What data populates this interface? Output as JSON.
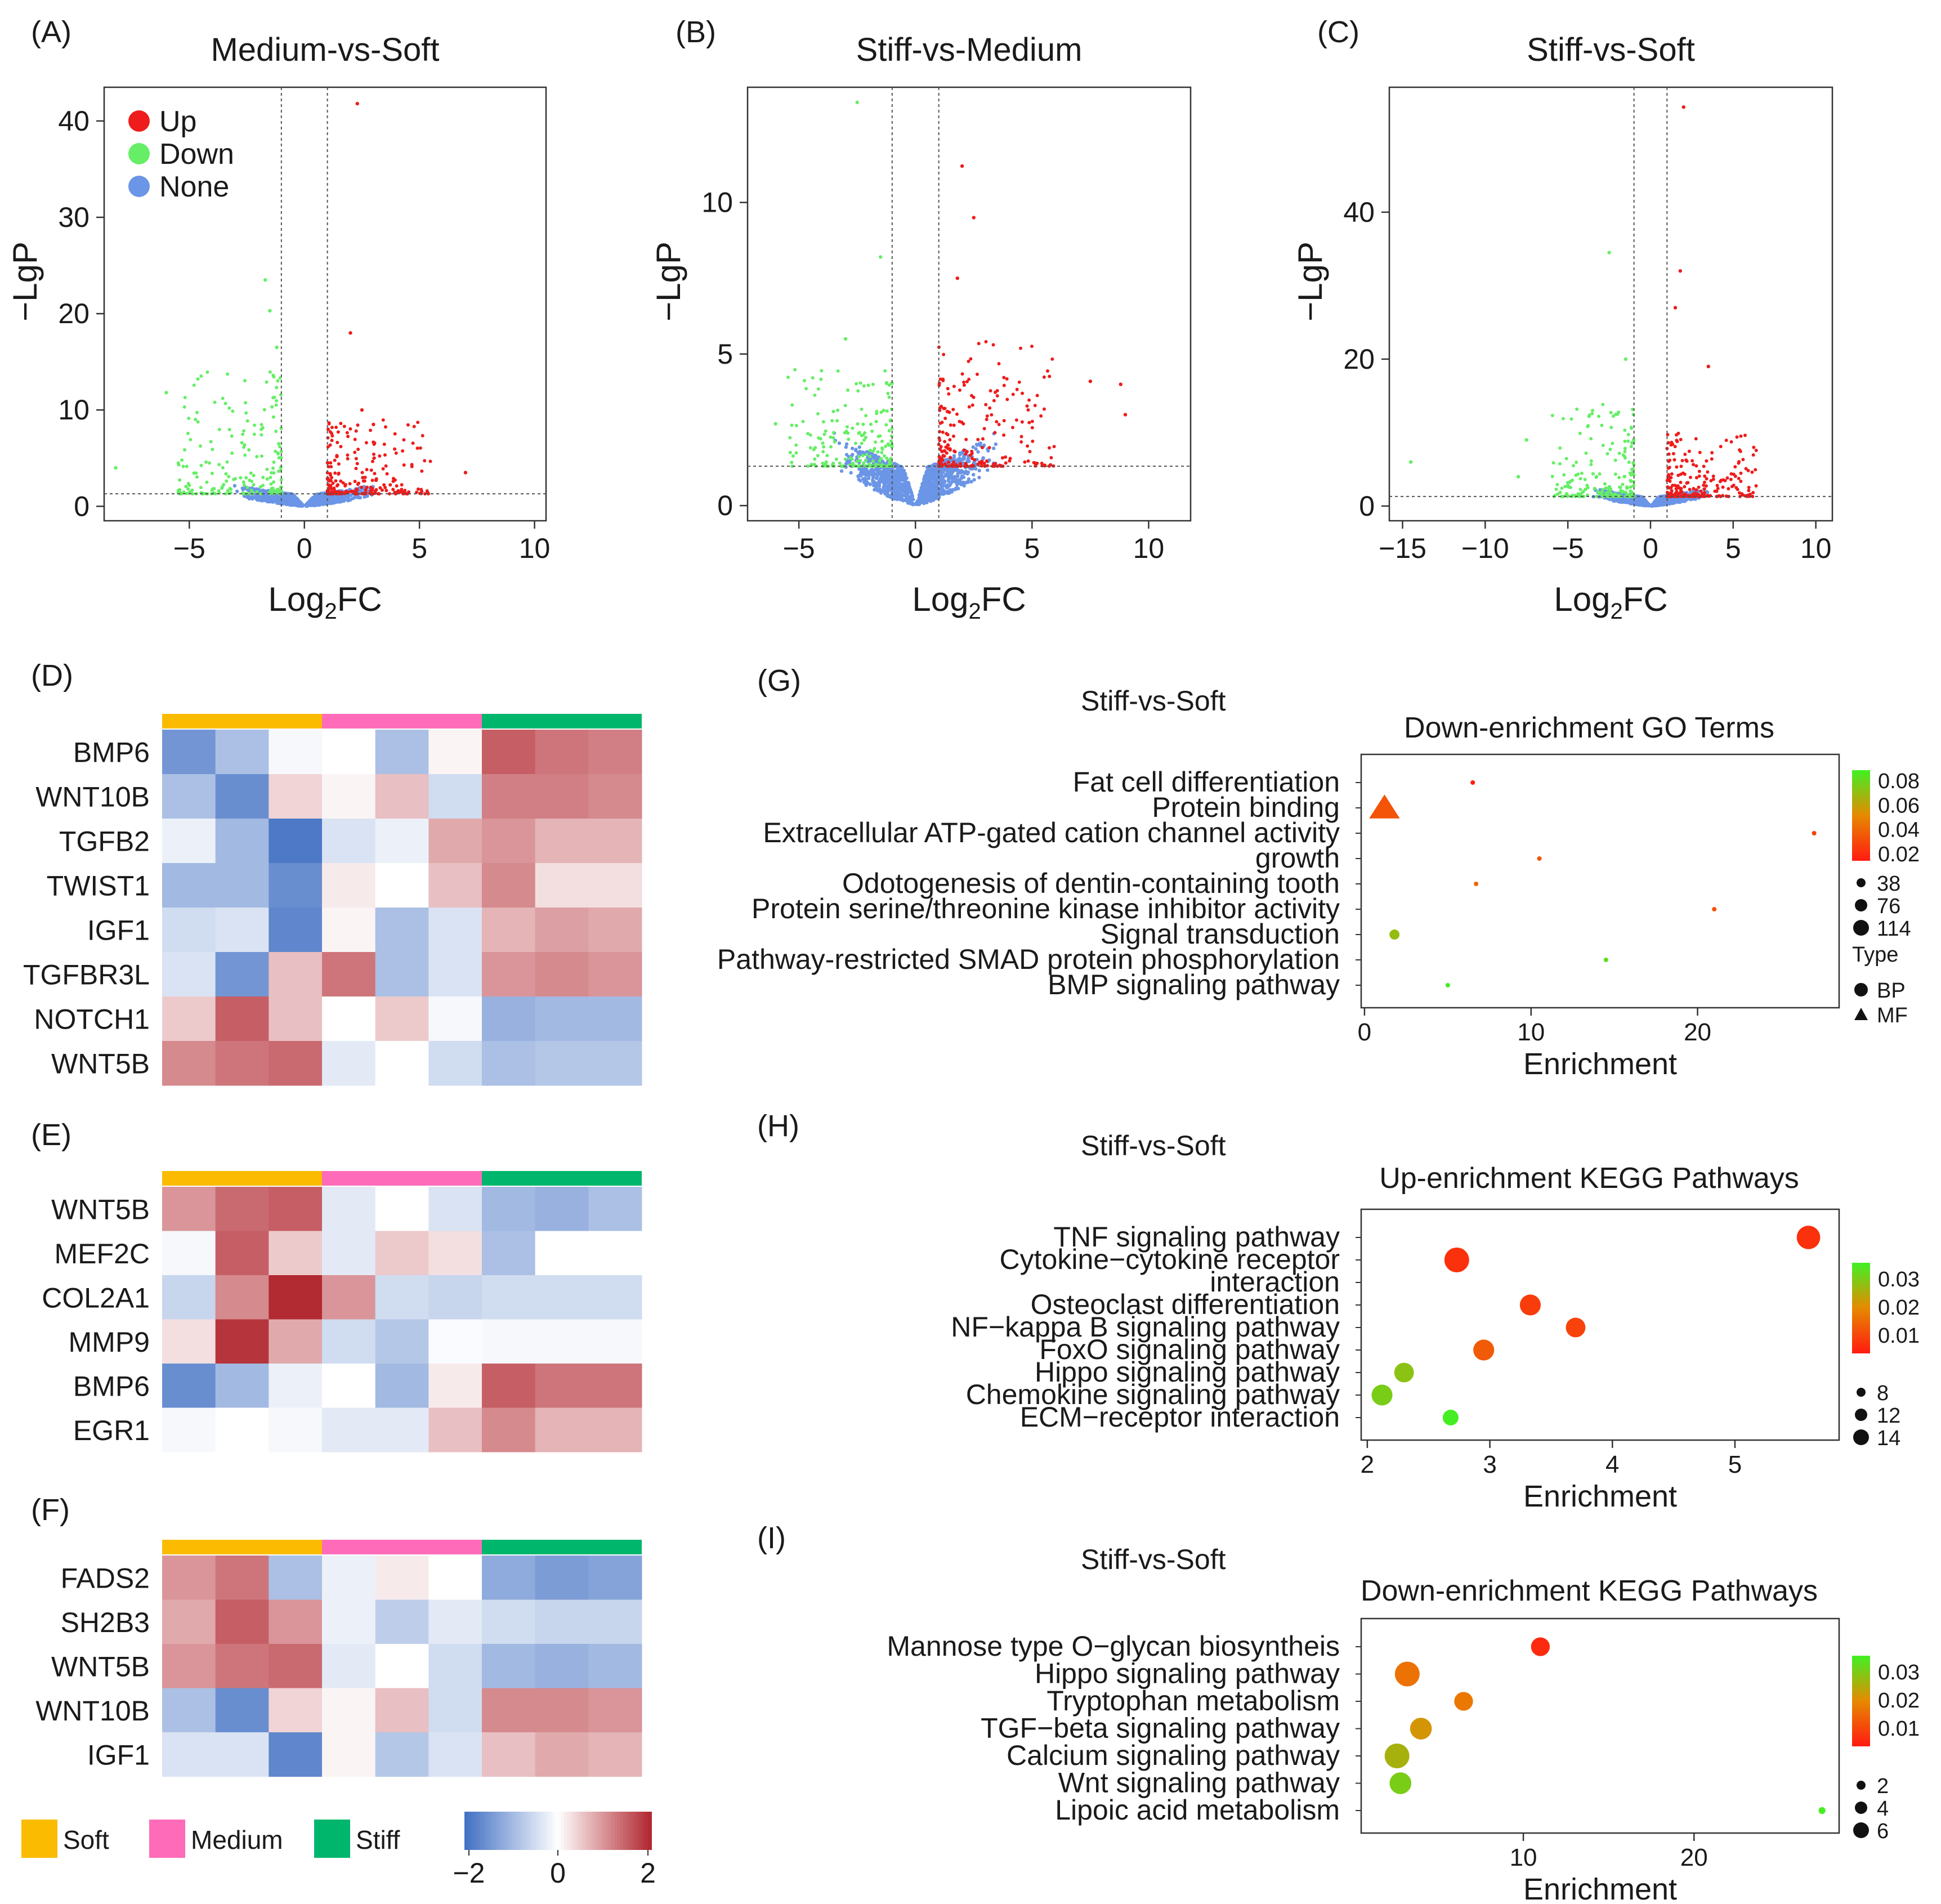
{
  "chart_data": [
    {
      "id": "A",
      "type": "scatter",
      "panel_label": "(A)",
      "title": "Medium-vs-Soft",
      "xlabel": "Log2FC",
      "ylabel": "−LgP",
      "xlim": [
        -8.7,
        10.5
      ],
      "ylim": [
        -1.5,
        43.5
      ],
      "xticks": [
        {
          "v": -5,
          "t": "−5"
        },
        {
          "v": 0,
          "t": "0"
        },
        {
          "v": 5,
          "t": "5"
        },
        {
          "v": 10,
          "t": "10"
        }
      ],
      "yticks": [
        {
          "v": 0,
          "t": "0"
        },
        {
          "v": 10,
          "t": "10"
        },
        {
          "v": 20,
          "t": "20"
        },
        {
          "v": 30,
          "t": "30"
        },
        {
          "v": 40,
          "t": "40"
        }
      ],
      "fc_cut": 1,
      "p_cut": 1.3,
      "legend": [
        {
          "label": "Up",
          "color": "#ee1c1c"
        },
        {
          "label": "Down",
          "color": "#66ee66"
        },
        {
          "label": "None",
          "color": "#6b95e6"
        }
      ],
      "points": [
        [
          2.3,
          41.8,
          "up"
        ],
        [
          -1.7,
          23.5,
          "down"
        ],
        [
          -1.5,
          20.3,
          "down"
        ],
        [
          2.0,
          18.0,
          "up"
        ],
        [
          -1.2,
          16.5,
          "down"
        ],
        [
          -6,
          11.8,
          "down"
        ],
        [
          -8.2,
          4,
          "down"
        ],
        [
          7.0,
          3.5,
          "up"
        ],
        [
          3.0,
          8.5,
          "up"
        ],
        [
          2.5,
          10,
          "up"
        ]
      ],
      "none_spread": [
        -4.5,
        5.0
      ],
      "up_range": [
        1.0,
        5.5,
        1.3,
        9
      ],
      "down_range": [
        -5.5,
        -1.0,
        1.3,
        14
      ]
    },
    {
      "id": "B",
      "type": "scatter",
      "panel_label": "(B)",
      "title": "Stiff-vs-Medium",
      "xlabel": "Log2FC",
      "ylabel": "−LgP",
      "xlim": [
        -7.2,
        11.8
      ],
      "ylim": [
        -0.5,
        13.8
      ],
      "xticks": [
        {
          "v": -5,
          "t": "−5"
        },
        {
          "v": 0,
          "t": "0"
        },
        {
          "v": 5,
          "t": "5"
        },
        {
          "v": 10,
          "t": "10"
        }
      ],
      "yticks": [
        {
          "v": 0,
          "t": "0"
        },
        {
          "v": 5,
          "t": "5"
        },
        {
          "v": 10,
          "t": "10"
        }
      ],
      "fc_cut": 1,
      "p_cut": 1.3,
      "points": [
        [
          -2.5,
          13.3,
          "down"
        ],
        [
          -1.5,
          8.2,
          "down"
        ],
        [
          2.0,
          11.2,
          "up"
        ],
        [
          2.5,
          9.5,
          "up"
        ],
        [
          1.8,
          7.5,
          "up"
        ],
        [
          7.5,
          4.1,
          "up"
        ],
        [
          8.8,
          4.0,
          "up"
        ],
        [
          9.0,
          3.0,
          "up"
        ],
        [
          -6.0,
          2.7,
          "down"
        ],
        [
          -3,
          5.5,
          "down"
        ]
      ],
      "none_spread": [
        -6.0,
        5.5
      ],
      "up_range": [
        1.0,
        6.0,
        1.3,
        5.5
      ],
      "down_range": [
        -5.5,
        -1.0,
        1.3,
        4.5
      ]
    },
    {
      "id": "C",
      "type": "scatter",
      "panel_label": "(C)",
      "title": "Stiff-vs-Soft",
      "xlabel": "Log2FC",
      "ylabel": "−LgP",
      "xlim": [
        -15.8,
        11.0
      ],
      "ylim": [
        -2.0,
        57.0
      ],
      "xticks": [
        {
          "v": -15,
          "t": "−15"
        },
        {
          "v": -10,
          "t": "−10"
        },
        {
          "v": -5,
          "t": "−5"
        },
        {
          "v": 0,
          "t": "0"
        },
        {
          "v": 5,
          "t": "5"
        },
        {
          "v": 10,
          "t": "10"
        }
      ],
      "yticks": [
        {
          "v": 0,
          "t": "0"
        },
        {
          "v": 20,
          "t": "20"
        },
        {
          "v": 40,
          "t": "40"
        }
      ],
      "fc_cut": 1,
      "p_cut": 1.3,
      "points": [
        [
          2.0,
          54.3,
          "up"
        ],
        [
          -2.5,
          34.5,
          "down"
        ],
        [
          1.8,
          32.0,
          "up"
        ],
        [
          1.5,
          27.0,
          "up"
        ],
        [
          -1.5,
          20.0,
          "down"
        ],
        [
          -14.5,
          6.0,
          "down"
        ],
        [
          -7.5,
          9.0,
          "down"
        ],
        [
          -8.0,
          4.0,
          "down"
        ],
        [
          3.5,
          19,
          "up"
        ]
      ],
      "none_spread": [
        -6.0,
        5.5
      ],
      "up_range": [
        1.0,
        6.5,
        1.3,
        10
      ],
      "down_range": [
        -6.0,
        -1.0,
        1.3,
        14
      ]
    },
    {
      "id": "D",
      "type": "heatmap",
      "panel_label": "(D)",
      "rows": [
        "BMP6",
        "WNT10B",
        "TGFB2",
        "TWIST1",
        "IGF1",
        "TGFBR3L",
        "NOTCH1",
        "WNT5B"
      ],
      "groups": [
        "Soft",
        "Medium",
        "Stiff"
      ],
      "zlim": [
        -2,
        2
      ],
      "values": [
        [
          -1.5,
          -0.9,
          -0.1,
          0.0,
          -0.9,
          0.1,
          1.5,
          1.3,
          1.2
        ],
        [
          -0.9,
          -1.6,
          0.4,
          0.1,
          0.6,
          -0.5,
          1.2,
          1.2,
          1.1
        ],
        [
          -0.2,
          -1.0,
          -1.9,
          -0.4,
          -0.2,
          0.8,
          1.0,
          0.7,
          0.7
        ],
        [
          -1.0,
          -1.0,
          -1.6,
          0.2,
          0.0,
          0.6,
          1.1,
          0.3,
          0.3
        ],
        [
          -0.5,
          -0.4,
          -1.7,
          0.1,
          -0.9,
          -0.4,
          0.7,
          0.9,
          0.8
        ],
        [
          -0.4,
          -1.5,
          0.6,
          1.3,
          -0.9,
          -0.4,
          1.0,
          1.1,
          1.0
        ],
        [
          0.5,
          1.5,
          0.6,
          0.0,
          0.5,
          -0.1,
          -1.1,
          -1.0,
          -1.0
        ],
        [
          1.1,
          1.3,
          1.4,
          -0.3,
          0.0,
          -0.5,
          -0.9,
          -0.8,
          -0.8
        ]
      ]
    },
    {
      "id": "E",
      "type": "heatmap",
      "panel_label": "(E)",
      "rows": [
        "WNT5B",
        "MEF2C",
        "COL2A1",
        "MMP9",
        "BMP6",
        "EGR1"
      ],
      "groups": [
        "Soft",
        "Medium",
        "Stiff"
      ],
      "zlim": [
        -2,
        2
      ],
      "values": [
        [
          1.0,
          1.4,
          1.5,
          -0.3,
          0.0,
          -0.4,
          -1.0,
          -1.1,
          -0.9
        ],
        [
          -0.1,
          1.5,
          0.5,
          -0.3,
          0.5,
          0.3,
          -0.9,
          0.0,
          0.0
        ],
        [
          -0.6,
          1.1,
          2.0,
          1.0,
          -0.5,
          -0.6,
          -0.5,
          -0.5,
          -0.5
        ],
        [
          0.3,
          1.9,
          0.8,
          -0.5,
          -0.8,
          -0.05,
          -0.1,
          -0.1,
          -0.1
        ],
        [
          -1.6,
          -1.0,
          -0.2,
          0.0,
          -1.0,
          0.2,
          1.5,
          1.3,
          1.3
        ],
        [
          -0.1,
          0.0,
          -0.1,
          -0.3,
          -0.3,
          0.6,
          1.1,
          0.7,
          0.7
        ]
      ]
    },
    {
      "id": "F",
      "type": "heatmap",
      "panel_label": "(F)",
      "rows": [
        "FADS2",
        "SH2B3",
        "WNT5B",
        "WNT10B",
        "IGF1"
      ],
      "groups": [
        "Soft",
        "Medium",
        "Stiff"
      ],
      "zlim": [
        -2,
        2
      ],
      "values": [
        [
          1.0,
          1.3,
          -0.9,
          -0.2,
          0.2,
          0.0,
          -1.2,
          -1.4,
          -1.3
        ],
        [
          0.8,
          1.5,
          1.0,
          -0.2,
          -0.7,
          -0.3,
          -0.5,
          -0.6,
          -0.6
        ],
        [
          1.0,
          1.3,
          1.4,
          -0.3,
          0.0,
          -0.5,
          -1.0,
          -1.1,
          -1.0
        ],
        [
          -0.9,
          -1.6,
          0.4,
          0.1,
          0.6,
          -0.5,
          1.1,
          1.1,
          1.0
        ],
        [
          -0.4,
          -0.4,
          -1.7,
          0.1,
          -0.8,
          -0.4,
          0.6,
          0.8,
          0.7
        ]
      ]
    },
    {
      "id": "G",
      "type": "scatter",
      "panel_label": "(G)",
      "comparison": "Stiff-vs-Soft",
      "title": "Down-enrichment GO Terms",
      "xlabel": "Enrichment",
      "xlim": [
        -0.2,
        28.5
      ],
      "xticks": [
        {
          "v": 0,
          "t": "0"
        },
        {
          "v": 10,
          "t": "10"
        },
        {
          "v": 20,
          "t": "20"
        }
      ],
      "categories": [
        "Fat cell differentiation",
        "Protein binding",
        "Extracellular ATP-gated cation channel activity",
        "growth",
        "Odotogenesis of dentin-containing tooth",
        "Protein serine/threonine kinase inhibitor activity",
        "Signal transduction",
        "Pathway-restricted SMAD protein phosphorylation",
        "BMP signaling pathway"
      ],
      "points": [
        {
          "term": "Fat cell differentiation",
          "x": 6.5,
          "p": 0.02,
          "size": 1,
          "type": "BP"
        },
        {
          "term": "Protein binding",
          "x": 1.2,
          "p": 0.035,
          "size": 114,
          "type": "MF"
        },
        {
          "term": "Extracellular ATP-gated cation channel activity",
          "x": 27.0,
          "p": 0.03,
          "size": 1,
          "type": "MF"
        },
        {
          "term": "growth",
          "x": 10.5,
          "p": 0.035,
          "size": 1,
          "type": "BP"
        },
        {
          "term": "Odotogenesis of dentin-containing tooth",
          "x": 6.7,
          "p": 0.04,
          "size": 1,
          "type": "BP"
        },
        {
          "term": "Protein serine/threonine kinase inhibitor activity",
          "x": 21.0,
          "p": 0.035,
          "size": 1,
          "type": "MF"
        },
        {
          "term": "Signal transduction",
          "x": 1.8,
          "p": 0.065,
          "size": 5,
          "type": "BP"
        },
        {
          "term": "Pathway-restricted SMAD protein phosphorylation",
          "x": 14.5,
          "p": 0.075,
          "size": 1,
          "type": "BP"
        },
        {
          "term": "BMP signaling pathway",
          "x": 5.0,
          "p": 0.08,
          "size": 2,
          "type": "BP"
        }
      ],
      "color_scale": {
        "min": 0.02,
        "max": 0.08,
        "ticks": [
          "0.08",
          "0.06",
          "0.04",
          "0.02"
        ]
      },
      "size_legend": [
        "38",
        "76",
        "114"
      ],
      "type_legend": {
        "title": "Type",
        "items": [
          "BP",
          "MF"
        ]
      }
    },
    {
      "id": "H",
      "type": "scatter",
      "panel_label": "(H)",
      "comparison": "Stiff-vs-Soft",
      "title": "Up-enrichment KEGG Pathways",
      "xlabel": "Enrichment",
      "xlim": [
        1.95,
        5.85
      ],
      "xticks": [
        {
          "v": 2,
          "t": "2"
        },
        {
          "v": 3,
          "t": "3"
        },
        {
          "v": 4,
          "t": "4"
        },
        {
          "v": 5,
          "t": "5"
        }
      ],
      "categories": [
        "TNF signaling pathway",
        "Cytokine−cytokine receptor interaction",
        "Osteoclast differentiation",
        "NF−kappa B signaling pathway",
        "FoxO signaling pathway",
        "Hippo signaling pathway",
        "Chemokine signaling pathway",
        "ECM−receptor interaction"
      ],
      "points": [
        {
          "term": "TNF signaling pathway",
          "x": 5.6,
          "p": 0.003,
          "size": 13
        },
        {
          "term": "Cytokine−cytokine receptor interaction",
          "x": 2.73,
          "p": 0.003,
          "size": 14
        },
        {
          "term": "Osteoclast differentiation",
          "x": 3.33,
          "p": 0.005,
          "size": 11
        },
        {
          "term": "NF−kappa B signaling pathway",
          "x": 3.7,
          "p": 0.006,
          "size": 10
        },
        {
          "term": "FoxO signaling pathway",
          "x": 2.95,
          "p": 0.01,
          "size": 11
        },
        {
          "term": "Hippo signaling pathway",
          "x": 2.3,
          "p": 0.028,
          "size": 10
        },
        {
          "term": "Chemokine signaling pathway",
          "x": 2.12,
          "p": 0.03,
          "size": 11
        },
        {
          "term": "ECM−receptor interaction",
          "x": 2.68,
          "p": 0.036,
          "size": 7
        }
      ],
      "color_scale": {
        "min": 0.0,
        "max": 0.036,
        "ticks": [
          "0.03",
          "0.02",
          "0.01"
        ]
      },
      "size_legend": [
        "8",
        "12",
        "14"
      ]
    },
    {
      "id": "I",
      "type": "scatter",
      "panel_label": "(I)",
      "comparison": "Stiff-vs-Soft",
      "title": "Down-enrichment KEGG Pathways",
      "xlabel": "Enrichment",
      "xlim": [
        0.5,
        28.5
      ],
      "xticks": [
        {
          "v": 10,
          "t": "10"
        },
        {
          "v": 20,
          "t": "20"
        }
      ],
      "categories": [
        "Mannose type O−glycan biosyntheis",
        "Hippo signaling pathway",
        "Tryptophan metabolism",
        "TGF−beta signaling pathway",
        "Calcium signaling pathway",
        "Wnt signaling pathway",
        "Lipoic acid metabolism"
      ],
      "points": [
        {
          "term": "Mannose type O−glycan biosyntheis",
          "x": 11.0,
          "p": 0.002,
          "size": 4
        },
        {
          "term": "Hippo signaling pathway",
          "x": 3.2,
          "p": 0.014,
          "size": 6
        },
        {
          "term": "Tryptophan metabolism",
          "x": 6.5,
          "p": 0.015,
          "size": 4
        },
        {
          "term": "TGF−beta signaling pathway",
          "x": 4.0,
          "p": 0.02,
          "size": 5
        },
        {
          "term": "Calcium signaling pathway",
          "x": 2.6,
          "p": 0.025,
          "size": 6
        },
        {
          "term": "Wnt signaling pathway",
          "x": 2.8,
          "p": 0.03,
          "size": 5
        },
        {
          "term": "Lipoic acid metabolism",
          "x": 27.5,
          "p": 0.036,
          "size": 1
        }
      ],
      "color_scale": {
        "min": 0.0,
        "max": 0.036,
        "ticks": [
          "0.03",
          "0.02",
          "0.01"
        ]
      },
      "size_legend": [
        "2",
        "4",
        "6"
      ]
    }
  ],
  "heatmap_legend": {
    "groups": [
      {
        "label": "Soft",
        "color": "#fbbb00"
      },
      {
        "label": "Medium",
        "color": "#fe6cb9"
      },
      {
        "label": "Stiff",
        "color": "#00b66c"
      }
    ],
    "scale_ticks": [
      "−2",
      "0",
      "2"
    ]
  },
  "colors": {
    "up": "#ee1c1c",
    "down": "#66ee66",
    "none": "#6b95e6",
    "low": "#4472c4",
    "mid": "#ffffff",
    "high": "#b22a32"
  }
}
